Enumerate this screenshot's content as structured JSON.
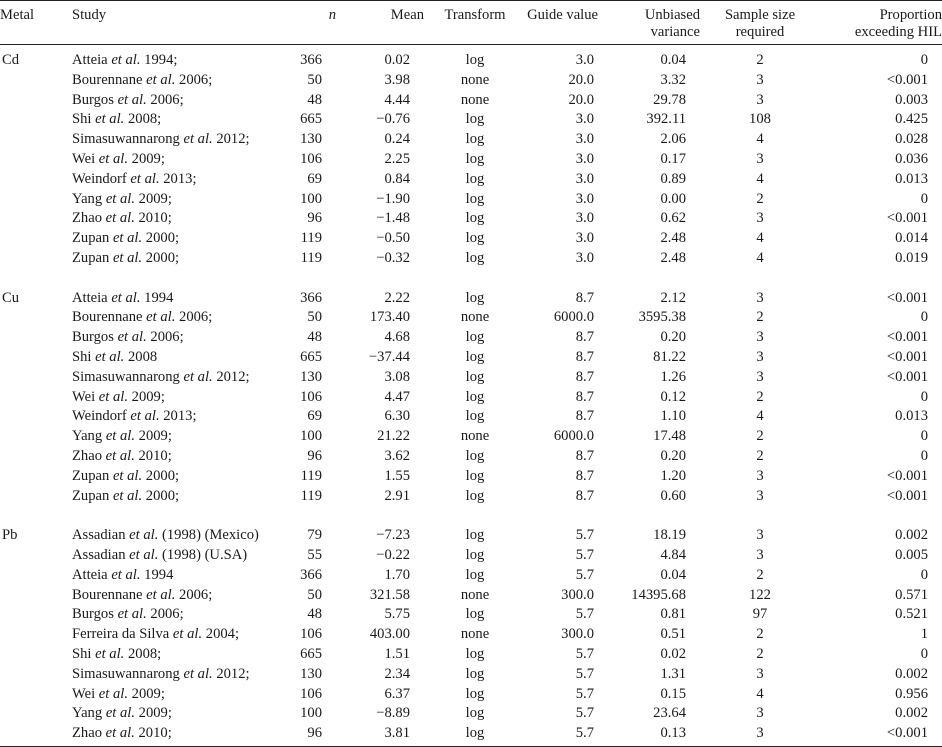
{
  "headers": {
    "metal": "Metal",
    "study": "Study",
    "n": "n",
    "mean": "Mean",
    "transform": "Transform",
    "guide": "Guide value",
    "variance": "Unbiased variance",
    "sample": "Sample size required",
    "proportion": "Proportion exceeding HIL"
  },
  "groups": [
    {
      "metal": "Cd",
      "rows": [
        {
          "author": "Atteia",
          "year": "1994;",
          "n": "366",
          "mean": "0.02",
          "transform": "log",
          "guide": "3.0",
          "variance": "0.04",
          "sample": "2",
          "proportion": "0"
        },
        {
          "author": "Bourennane",
          "year": "2006;",
          "n": "50",
          "mean": "3.98",
          "transform": "none",
          "guide": "20.0",
          "variance": "3.32",
          "sample": "3",
          "proportion": "<0.001"
        },
        {
          "author": "Burgos",
          "year": "2006;",
          "n": "48",
          "mean": "4.44",
          "transform": "none",
          "guide": "20.0",
          "variance": "29.78",
          "sample": "3",
          "proportion": "0.003"
        },
        {
          "author": "Shi",
          "year": "2008;",
          "n": "665",
          "mean": "−0.76",
          "transform": "log",
          "guide": "3.0",
          "variance": "392.11",
          "sample": "108",
          "proportion": "0.425"
        },
        {
          "author": "Simasuwannarong",
          "year": "2012;",
          "n": "130",
          "mean": "0.24",
          "transform": "log",
          "guide": "3.0",
          "variance": "2.06",
          "sample": "4",
          "proportion": "0.028"
        },
        {
          "author": "Wei",
          "year": "2009;",
          "n": "106",
          "mean": "2.25",
          "transform": "log",
          "guide": "3.0",
          "variance": "0.17",
          "sample": "3",
          "proportion": "0.036"
        },
        {
          "author": "Weindorf",
          "year": "2013;",
          "n": "69",
          "mean": "0.84",
          "transform": "log",
          "guide": "3.0",
          "variance": "0.89",
          "sample": "4",
          "proportion": "0.013"
        },
        {
          "author": "Yang",
          "year": "2009;",
          "n": "100",
          "mean": "−1.90",
          "transform": "log",
          "guide": "3.0",
          "variance": "0.00",
          "sample": "2",
          "proportion": "0"
        },
        {
          "author": "Zhao",
          "year": "2010;",
          "n": "96",
          "mean": "−1.48",
          "transform": "log",
          "guide": "3.0",
          "variance": "0.62",
          "sample": "3",
          "proportion": "<0.001"
        },
        {
          "author": "Zupan",
          "year": "2000;",
          "n": "119",
          "mean": "−0.50",
          "transform": "log",
          "guide": "3.0",
          "variance": "2.48",
          "sample": "4",
          "proportion": "0.014"
        },
        {
          "author": "Zupan",
          "year": "2000;",
          "n": "119",
          "mean": "−0.32",
          "transform": "log",
          "guide": "3.0",
          "variance": "2.48",
          "sample": "4",
          "proportion": "0.019"
        }
      ]
    },
    {
      "metal": "Cu",
      "rows": [
        {
          "author": "Atteia",
          "year": "1994",
          "n": "366",
          "mean": "2.22",
          "transform": "log",
          "guide": "8.7",
          "variance": "2.12",
          "sample": "3",
          "proportion": "<0.001"
        },
        {
          "author": "Bourennane",
          "year": "2006;",
          "n": "50",
          "mean": "173.40",
          "transform": "none",
          "guide": "6000.0",
          "variance": "3595.38",
          "sample": "2",
          "proportion": "0"
        },
        {
          "author": "Burgos",
          "year": "2006;",
          "n": "48",
          "mean": "4.68",
          "transform": "log",
          "guide": "8.7",
          "variance": "0.20",
          "sample": "3",
          "proportion": "<0.001"
        },
        {
          "author": "Shi",
          "year": "2008",
          "n": "665",
          "mean": "−37.44",
          "transform": "log",
          "guide": "8.7",
          "variance": "81.22",
          "sample": "3",
          "proportion": "<0.001"
        },
        {
          "author": "Simasuwannarong",
          "year": "2012;",
          "n": "130",
          "mean": "3.08",
          "transform": "log",
          "guide": "8.7",
          "variance": "1.26",
          "sample": "3",
          "proportion": "<0.001"
        },
        {
          "author": "Wei",
          "year": "2009;",
          "n": "106",
          "mean": "4.47",
          "transform": "log",
          "guide": "8.7",
          "variance": "0.12",
          "sample": "2",
          "proportion": "0"
        },
        {
          "author": "Weindorf",
          "year": "2013;",
          "n": "69",
          "mean": "6.30",
          "transform": "log",
          "guide": "8.7",
          "variance": "1.10",
          "sample": "4",
          "proportion": "0.013"
        },
        {
          "author": "Yang",
          "year": "2009;",
          "n": "100",
          "mean": "21.22",
          "transform": "none",
          "guide": "6000.0",
          "variance": "17.48",
          "sample": "2",
          "proportion": "0"
        },
        {
          "author": "Zhao",
          "year": "2010;",
          "n": "96",
          "mean": "3.62",
          "transform": "log",
          "guide": "8.7",
          "variance": "0.20",
          "sample": "2",
          "proportion": "0"
        },
        {
          "author": "Zupan",
          "year": "2000;",
          "n": "119",
          "mean": "1.55",
          "transform": "log",
          "guide": "8.7",
          "variance": "1.20",
          "sample": "3",
          "proportion": "<0.001"
        },
        {
          "author": "Zupan",
          "year": "2000;",
          "n": "119",
          "mean": "2.91",
          "transform": "log",
          "guide": "8.7",
          "variance": "0.60",
          "sample": "3",
          "proportion": "<0.001"
        }
      ]
    },
    {
      "metal": "Pb",
      "rows": [
        {
          "author": "Assadian",
          "year": "(1998) (Mexico)",
          "n": "79",
          "mean": "−7.23",
          "transform": "log",
          "guide": "5.7",
          "variance": "18.19",
          "sample": "3",
          "proportion": "0.002"
        },
        {
          "author": "Assadian",
          "year": "(1998) (U.SA)",
          "n": "55",
          "mean": "−0.22",
          "transform": "log",
          "guide": "5.7",
          "variance": "4.84",
          "sample": "3",
          "proportion": "0.005"
        },
        {
          "author": "Atteia",
          "year": "1994",
          "n": "366",
          "mean": "1.70",
          "transform": "log",
          "guide": "5.7",
          "variance": "0.04",
          "sample": "2",
          "proportion": "0"
        },
        {
          "author": "Bourennane",
          "year": "2006;",
          "n": "50",
          "mean": "321.58",
          "transform": "none",
          "guide": "300.0",
          "variance": "14395.68",
          "sample": "122",
          "proportion": "0.571"
        },
        {
          "author": "Burgos",
          "year": "2006;",
          "n": "48",
          "mean": "5.75",
          "transform": "log",
          "guide": "5.7",
          "variance": "0.81",
          "sample": "97",
          "proportion": "0.521"
        },
        {
          "author": "Ferreira da Silva",
          "year": "2004;",
          "n": "106",
          "mean": "403.00",
          "transform": "none",
          "guide": "300.0",
          "variance": "0.51",
          "sample": "2",
          "proportion": "1"
        },
        {
          "author": "Shi",
          "year": "2008;",
          "n": "665",
          "mean": "1.51",
          "transform": "log",
          "guide": "5.7",
          "variance": "0.02",
          "sample": "2",
          "proportion": "0"
        },
        {
          "author": "Simasuwannarong",
          "year": "2012;",
          "n": "130",
          "mean": "2.34",
          "transform": "log",
          "guide": "5.7",
          "variance": "1.31",
          "sample": "3",
          "proportion": "0.002"
        },
        {
          "author": "Wei",
          "year": "2009;",
          "n": "106",
          "mean": "6.37",
          "transform": "log",
          "guide": "5.7",
          "variance": "0.15",
          "sample": "4",
          "proportion": "0.956"
        },
        {
          "author": "Yang",
          "year": "2009;",
          "n": "100",
          "mean": "−8.89",
          "transform": "log",
          "guide": "5.7",
          "variance": "23.64",
          "sample": "3",
          "proportion": "0.002"
        },
        {
          "author": "Zhao",
          "year": "2010;",
          "n": "96",
          "mean": "3.81",
          "transform": "log",
          "guide": "5.7",
          "variance": "0.13",
          "sample": "3",
          "proportion": "<0.001"
        }
      ]
    }
  ],
  "etal": "et al."
}
